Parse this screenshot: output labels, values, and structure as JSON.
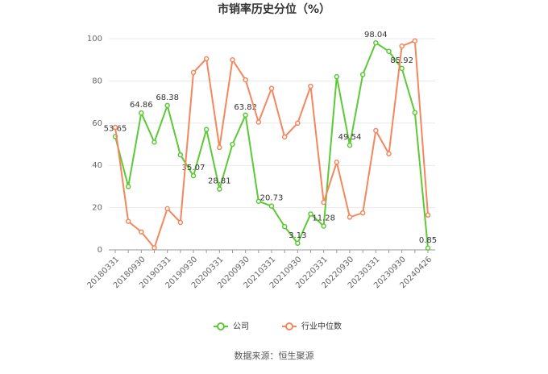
{
  "chart_data": {
    "type": "line",
    "title": "市销率历史分位（%）",
    "categories": [
      "20180331",
      null,
      "20180930",
      null,
      "20190331",
      null,
      "20190930",
      null,
      "20200331",
      null,
      "20200930",
      null,
      "20210331",
      null,
      "20210930",
      null,
      "20220331",
      null,
      "20220930",
      null,
      "20230331",
      null,
      "20230930",
      null,
      "20240426"
    ],
    "series": [
      {
        "name": "公司",
        "color": "#5cc936",
        "values": [
          53.65,
          30,
          64.86,
          51,
          68.38,
          45,
          35.07,
          57,
          28.81,
          50,
          63.82,
          23,
          20.73,
          11,
          3.13,
          17,
          11.28,
          82,
          49.54,
          83,
          98.04,
          94,
          85.92,
          65,
          0.85
        ],
        "value_labels": [
          "53.65",
          null,
          "64.86",
          null,
          "68.38",
          null,
          "35.07",
          null,
          "28.81",
          null,
          "63.82",
          null,
          "20.73",
          null,
          "3.13",
          null,
          "11.28",
          null,
          "49.54",
          null,
          "98.04",
          null,
          "85.92",
          null,
          "0.85"
        ]
      },
      {
        "name": "行业中位数",
        "color": "#f4875e",
        "values": [
          58,
          13.5,
          8.5,
          1,
          19.5,
          13,
          84,
          90.5,
          48.5,
          90,
          80.5,
          60.5,
          76.5,
          53.5,
          60,
          77.5,
          22.5,
          41.5,
          15.5,
          17.5,
          56.5,
          45.5,
          96.5,
          99,
          16.5
        ]
      }
    ],
    "ylim": [
      0,
      100
    ],
    "yticks": [
      0,
      20,
      40,
      60,
      80,
      100
    ],
    "grid": true,
    "legend": "bottom",
    "source": "数据来源：恒生聚源"
  }
}
